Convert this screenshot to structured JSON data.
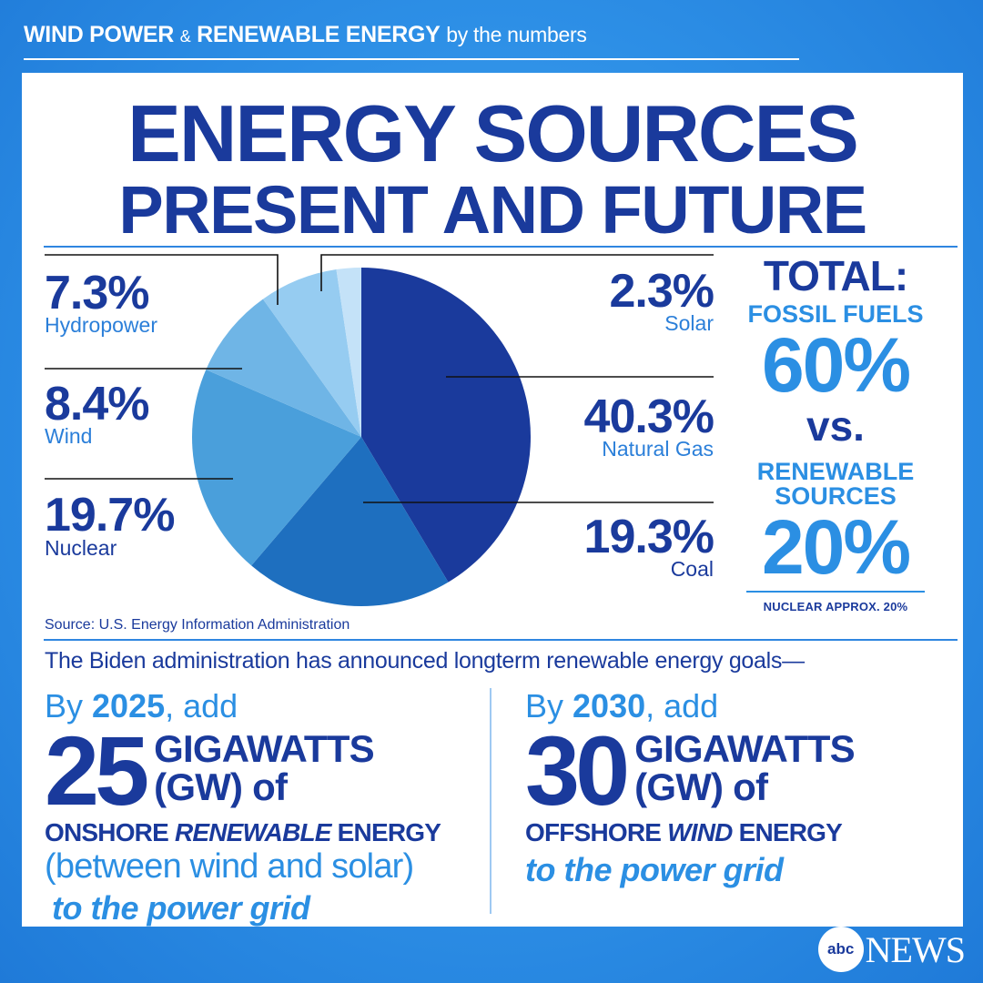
{
  "header": {
    "part1": "WIND POWER",
    "amp": "&",
    "part2": "RENEWABLE ENERGY",
    "part3": "by the numbers"
  },
  "title": {
    "line1": "ENERGY SOURCES",
    "line2": "PRESENT AND FUTURE"
  },
  "chart_data": {
    "type": "pie",
    "title": "",
    "slices": [
      {
        "label": "Natural Gas",
        "value": 40.3,
        "value_text": "40.3%",
        "color": "#1a3a9c"
      },
      {
        "label": "Coal",
        "value": 19.3,
        "value_text": "19.3%",
        "color": "#1e6fbf"
      },
      {
        "label": "Nuclear",
        "value": 19.7,
        "value_text": "19.7%",
        "color": "#4a9fdb"
      },
      {
        "label": "Wind",
        "value": 8.4,
        "value_text": "8.4%",
        "color": "#6fb5e6"
      },
      {
        "label": "Hydropower",
        "value": 7.3,
        "value_text": "7.3%",
        "color": "#96ccf1"
      },
      {
        "label": "Solar",
        "value": 2.3,
        "value_text": "2.3%",
        "color": "#c4e2f8"
      }
    ],
    "start_angle": 0,
    "source": "Source: U.S. Energy Information Administration"
  },
  "totals": {
    "label": "TOTAL:",
    "fossil_label": "FOSSIL FUELS",
    "fossil_value": "60%",
    "vs": "vs.",
    "renewable_line1": "RENEWABLE",
    "renewable_line2": "SOURCES",
    "renewable_value": "20%",
    "note": "NUCLEAR  APPROX. 20%"
  },
  "announcement": "The Biden administration has announced longterm renewable energy goals—",
  "goals": [
    {
      "by": "By",
      "year": "2025",
      "add": ", add",
      "number": "25",
      "unit_line1": "GIGAWATTS",
      "unit_line2": "(GW) of",
      "what_pre": "ONSHORE",
      "what_em": "RENEWABLE",
      "what_post": "ENERGY",
      "paren": "(between wind and solar)",
      "grid": "to the power grid"
    },
    {
      "by": "By",
      "year": "2030",
      "add": ", add",
      "number": "30",
      "unit_line1": "GIGAWATTS",
      "unit_line2": "(GW) of",
      "what_pre": "OFFSHORE",
      "what_em": "WIND",
      "what_post": "ENERGY",
      "grid": "to the power grid"
    }
  ],
  "brand": {
    "logo": "abc",
    "wordmark": "NEWS"
  }
}
